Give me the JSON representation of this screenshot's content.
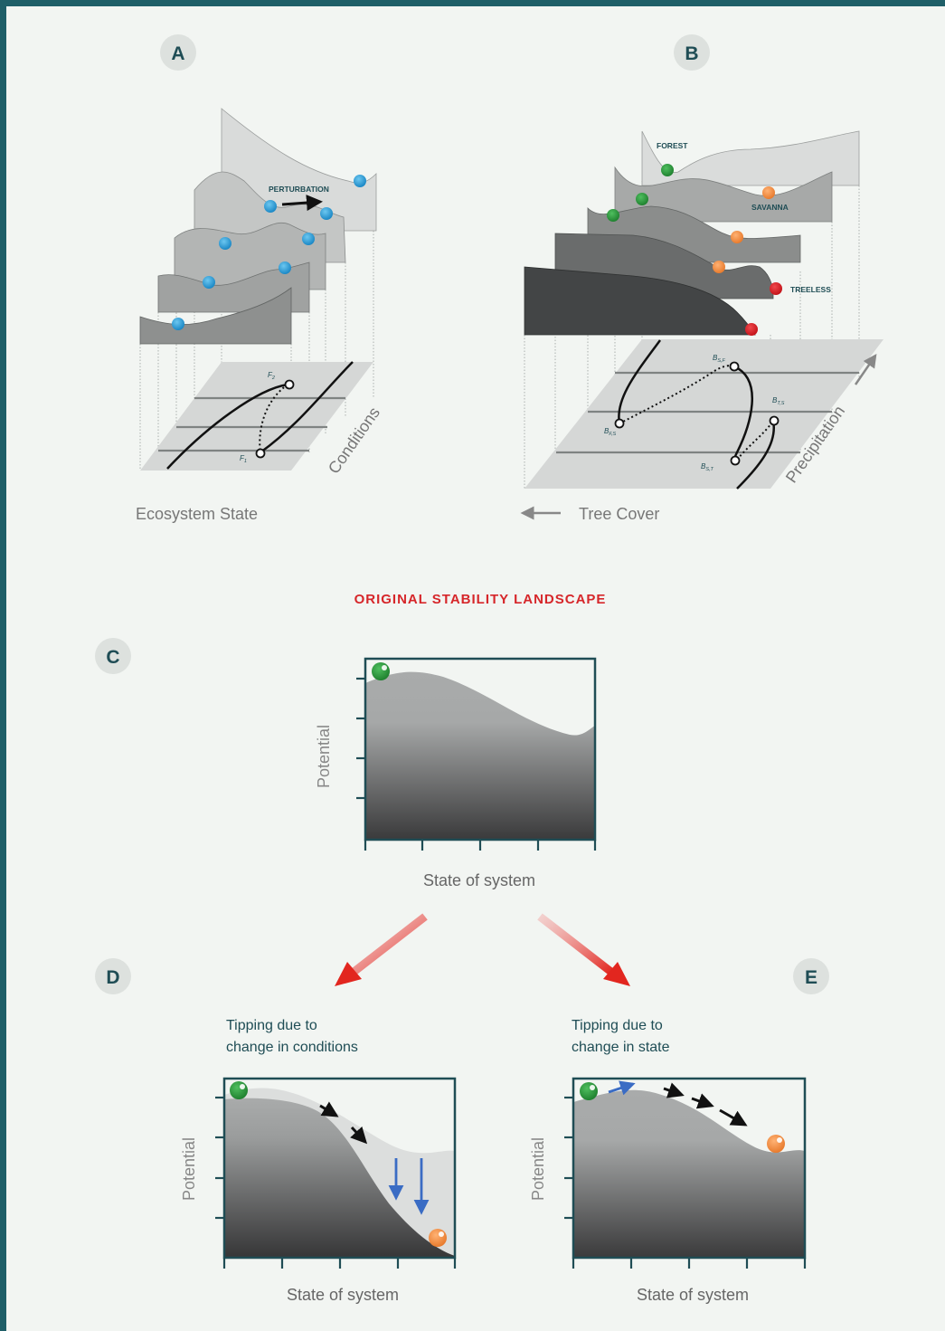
{
  "panels": {
    "a": {
      "letter": "A",
      "perturbation_label": "PERTURBATION",
      "f2": "F",
      "f2_sub": "2",
      "f1": "F",
      "f1_sub": "1",
      "axis_x": "Ecosystem State",
      "axis_y": "Conditions"
    },
    "b": {
      "letter": "B",
      "forest_label": "FOREST",
      "savanna_label": "SAVANNA",
      "treeless_label": "TREELESS",
      "bsf": "B",
      "bsf_sub": "S,F",
      "bfs": "B",
      "bfs_sub": "F,S",
      "bts": "B",
      "bts_sub": "T,S",
      "bst": "B",
      "bst_sub": "S,T",
      "axis_x": "Tree Cover",
      "axis_y": "Precipitation"
    },
    "section_title": "ORIGINAL STABILITY LANDSCAPE",
    "c": {
      "letter": "C",
      "ylabel": "Potential",
      "xlabel": "State of system"
    },
    "d": {
      "letter": "D",
      "caption_1": "Tipping due to",
      "caption_2": "change in conditions",
      "ylabel": "Potential",
      "xlabel": "State of system"
    },
    "e": {
      "letter": "E",
      "caption_1": "Tipping due to",
      "caption_2": "change in state",
      "ylabel": "Potential",
      "xlabel": "State of system"
    }
  },
  "colors": {
    "frame": "#1f5f68",
    "background": "#f2f5f2",
    "title_red": "#d6262a",
    "ball_blue": "#1f9ad6",
    "ball_green": "#2a9a3c",
    "ball_orange": "#ef8a3e",
    "ball_red": "#d7191f",
    "arrow_blue": "#3a6cc4"
  }
}
